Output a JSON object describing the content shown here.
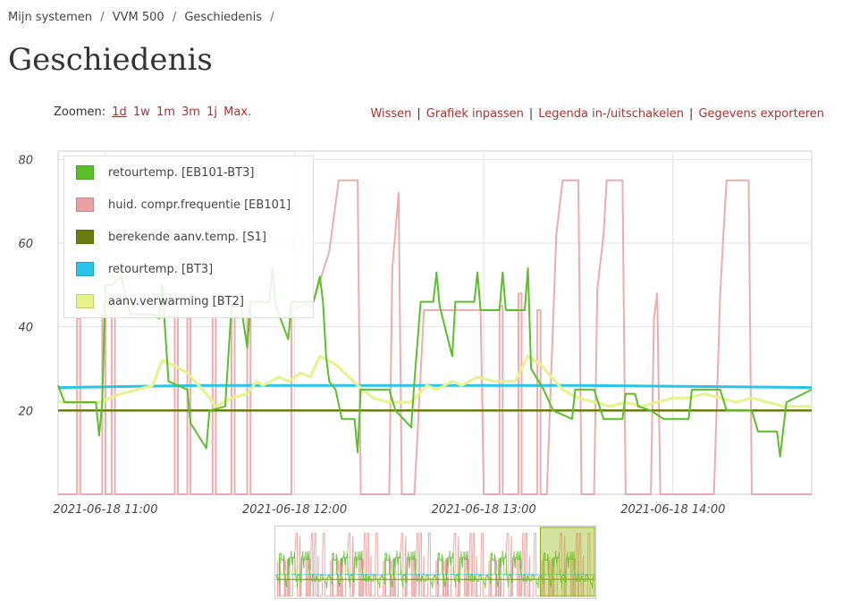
{
  "breadcrumb": {
    "items": [
      {
        "label": "Mijn systemen"
      },
      {
        "label": "VVM 500"
      },
      {
        "label": "Geschiedenis"
      }
    ],
    "separator": "/"
  },
  "page": {
    "title": "Geschiedenis"
  },
  "zoom": {
    "label": "Zoomen:",
    "options": [
      "1d",
      "1w",
      "1m",
      "3m",
      "1j",
      "Max."
    ],
    "active": "1d"
  },
  "actions": {
    "clear": "Wissen",
    "fit": "Grafiek inpassen",
    "legend_toggle": "Legenda in-/uitschakelen",
    "export": "Gegevens exporteren",
    "separator": "|"
  },
  "colors": {
    "link": "#aa3333",
    "series_green": "#5cbf2a",
    "series_pink": "#e8a0a0",
    "series_olive": "#6b7c10",
    "series_cyan": "#29c4e8",
    "series_yellow": "#e6f28a"
  },
  "chart_data": {
    "type": "line",
    "x_axis": {
      "ticks": [
        "2021-06-18 11:00",
        "2021-06-18 12:00",
        "2021-06-18 13:00",
        "2021-06-18 14:00"
      ],
      "range": [
        "2021-06-18 10:45",
        "2021-06-18 14:44"
      ]
    },
    "y_axis": {
      "ticks": [
        20,
        40,
        60,
        80
      ],
      "ylim": [
        0,
        82
      ]
    },
    "grid": true,
    "legend_position": "top-left",
    "series": [
      {
        "name": "retourtemp. [EB101-BT3]",
        "color": "#5cbf2a",
        "points": [
          [
            "2021-06-18 10:45",
            26
          ],
          [
            "2021-06-18 10:47",
            22
          ],
          [
            "2021-06-18 10:57",
            22
          ],
          [
            "2021-06-18 10:58",
            14
          ],
          [
            "2021-06-18 10:59",
            22
          ],
          [
            "2021-06-18 11:00",
            50
          ],
          [
            "2021-06-18 11:02",
            50
          ],
          [
            "2021-06-18 11:05",
            52
          ],
          [
            "2021-06-18 11:08",
            43
          ],
          [
            "2021-06-18 11:15",
            43
          ],
          [
            "2021-06-18 11:17",
            42
          ],
          [
            "2021-06-18 11:18",
            50
          ],
          [
            "2021-06-18 11:20",
            27
          ],
          [
            "2021-06-18 11:26",
            25
          ],
          [
            "2021-06-18 11:27",
            17
          ],
          [
            "2021-06-18 11:32",
            11
          ],
          [
            "2021-06-18 11:33",
            20
          ],
          [
            "2021-06-18 11:38",
            21
          ],
          [
            "2021-06-18 11:40",
            45
          ],
          [
            "2021-06-18 11:43",
            45
          ],
          [
            "2021-06-18 11:45",
            35
          ],
          [
            "2021-06-18 11:46",
            46
          ],
          [
            "2021-06-18 11:52",
            46
          ],
          [
            "2021-06-18 11:53",
            54
          ],
          [
            "2021-06-18 11:54",
            45
          ],
          [
            "2021-06-18 11:58",
            37
          ],
          [
            "2021-06-18 11:59",
            46
          ],
          [
            "2021-06-18 12:06",
            46
          ],
          [
            "2021-06-18 12:08",
            52
          ],
          [
            "2021-06-18 12:09",
            46
          ],
          [
            "2021-06-18 12:10",
            33
          ],
          [
            "2021-06-18 12:11",
            27
          ],
          [
            "2021-06-18 12:13",
            25
          ],
          [
            "2021-06-18 12:15",
            18
          ],
          [
            "2021-06-18 12:19",
            18
          ],
          [
            "2021-06-18 12:20",
            10
          ],
          [
            "2021-06-18 12:21",
            25
          ],
          [
            "2021-06-18 12:30",
            25
          ],
          [
            "2021-06-18 12:32",
            20
          ],
          [
            "2021-06-18 12:37",
            16
          ],
          [
            "2021-06-18 12:38",
            27
          ],
          [
            "2021-06-18 12:40",
            46
          ],
          [
            "2021-06-18 12:44",
            46
          ],
          [
            "2021-06-18 12:45",
            53
          ],
          [
            "2021-06-18 12:46",
            45
          ],
          [
            "2021-06-18 12:50",
            33
          ],
          [
            "2021-06-18 12:51",
            46
          ],
          [
            "2021-06-18 12:57",
            46
          ],
          [
            "2021-06-18 12:58",
            53
          ],
          [
            "2021-06-18 12:59",
            44
          ],
          [
            "2021-06-18 13:05",
            44
          ],
          [
            "2021-06-18 13:06",
            53
          ],
          [
            "2021-06-18 13:07",
            44
          ],
          [
            "2021-06-18 13:13",
            44
          ],
          [
            "2021-06-18 13:14",
            54
          ],
          [
            "2021-06-18 13:15",
            30
          ],
          [
            "2021-06-18 13:19",
            25
          ],
          [
            "2021-06-18 13:22",
            20
          ],
          [
            "2021-06-18 13:28",
            18
          ],
          [
            "2021-06-18 13:29",
            25
          ],
          [
            "2021-06-18 13:35",
            25
          ],
          [
            "2021-06-18 13:38",
            18
          ],
          [
            "2021-06-18 13:44",
            18
          ],
          [
            "2021-06-18 13:45",
            24
          ],
          [
            "2021-06-18 13:48",
            24
          ],
          [
            "2021-06-18 13:49",
            21
          ],
          [
            "2021-06-18 13:53",
            20
          ],
          [
            "2021-06-18 13:57",
            18
          ],
          [
            "2021-06-18 14:05",
            18
          ],
          [
            "2021-06-18 14:06",
            25
          ],
          [
            "2021-06-18 14:15",
            25
          ],
          [
            "2021-06-18 14:17",
            20
          ],
          [
            "2021-06-18 14:25",
            20
          ],
          [
            "2021-06-18 14:27",
            15
          ],
          [
            "2021-06-18 14:33",
            15
          ],
          [
            "2021-06-18 14:34",
            9
          ],
          [
            "2021-06-18 14:36",
            22
          ],
          [
            "2021-06-18 14:44",
            25
          ]
        ]
      },
      {
        "name": "huid. compr.frequentie [EB101]",
        "color": "#e8a0a0",
        "points": [
          [
            "2021-06-18 10:45",
            0
          ],
          [
            "2021-06-18 10:51",
            0
          ],
          [
            "2021-06-18 10:51",
            42
          ],
          [
            "2021-06-18 10:52",
            42
          ],
          [
            "2021-06-18 10:52",
            0
          ],
          [
            "2021-06-18 10:59",
            0
          ],
          [
            "2021-06-18 10:59",
            45
          ],
          [
            "2021-06-18 11:00",
            45
          ],
          [
            "2021-06-18 11:00",
            0
          ],
          [
            "2021-06-18 11:02",
            0
          ],
          [
            "2021-06-18 11:02",
            45
          ],
          [
            "2021-06-18 11:03",
            45
          ],
          [
            "2021-06-18 11:03",
            0
          ],
          [
            "2021-06-18 11:22",
            0
          ],
          [
            "2021-06-18 11:22",
            46
          ],
          [
            "2021-06-18 11:23",
            46
          ],
          [
            "2021-06-18 11:23",
            0
          ],
          [
            "2021-06-18 11:26",
            0
          ],
          [
            "2021-06-18 11:26",
            42
          ],
          [
            "2021-06-18 11:27",
            42
          ],
          [
            "2021-06-18 11:27",
            0
          ],
          [
            "2021-06-18 11:34",
            0
          ],
          [
            "2021-06-18 11:34",
            44
          ],
          [
            "2021-06-18 11:35",
            44
          ],
          [
            "2021-06-18 11:35",
            0
          ],
          [
            "2021-06-18 11:40",
            0
          ],
          [
            "2021-06-18 11:40",
            43
          ],
          [
            "2021-06-18 11:41",
            43
          ],
          [
            "2021-06-18 11:41",
            0
          ],
          [
            "2021-06-18 11:45",
            0
          ],
          [
            "2021-06-18 11:45",
            44
          ],
          [
            "2021-06-18 11:46",
            44
          ],
          [
            "2021-06-18 11:46",
            0
          ],
          [
            "2021-06-18 11:59",
            0
          ],
          [
            "2021-06-18 11:59",
            44
          ],
          [
            "2021-06-18 12:06",
            46
          ],
          [
            "2021-06-18 12:11",
            58
          ],
          [
            "2021-06-18 12:14",
            75
          ],
          [
            "2021-06-18 12:20",
            75
          ],
          [
            "2021-06-18 12:21",
            0
          ],
          [
            "2021-06-18 12:30",
            0
          ],
          [
            "2021-06-18 12:31",
            54
          ],
          [
            "2021-06-18 12:33",
            72
          ],
          [
            "2021-06-18 12:34",
            0
          ],
          [
            "2021-06-18 12:37",
            0
          ],
          [
            "2021-06-18 12:38",
            0
          ],
          [
            "2021-06-18 12:41",
            44
          ],
          [
            "2021-06-18 12:59",
            44
          ],
          [
            "2021-06-18 13:00",
            0
          ],
          [
            "2021-06-18 13:05",
            0
          ],
          [
            "2021-06-18 13:05",
            45
          ],
          [
            "2021-06-18 13:06",
            45
          ],
          [
            "2021-06-18 13:06",
            0
          ],
          [
            "2021-06-18 13:11",
            0
          ],
          [
            "2021-06-18 13:11",
            48
          ],
          [
            "2021-06-18 13:12",
            48
          ],
          [
            "2021-06-18 13:12",
            0
          ],
          [
            "2021-06-18 13:17",
            0
          ],
          [
            "2021-06-18 13:17",
            44
          ],
          [
            "2021-06-18 13:18",
            44
          ],
          [
            "2021-06-18 13:18",
            0
          ],
          [
            "2021-06-18 13:20",
            0
          ],
          [
            "2021-06-18 13:23",
            62
          ],
          [
            "2021-06-18 13:25",
            75
          ],
          [
            "2021-06-18 13:30",
            75
          ],
          [
            "2021-06-18 13:31",
            0
          ],
          [
            "2021-06-18 13:35",
            0
          ],
          [
            "2021-06-18 13:36",
            49
          ],
          [
            "2021-06-18 13:38",
            62
          ],
          [
            "2021-06-18 13:39",
            75
          ],
          [
            "2021-06-18 13:44",
            75
          ],
          [
            "2021-06-18 13:45",
            0
          ],
          [
            "2021-06-18 13:53",
            0
          ],
          [
            "2021-06-18 13:54",
            42
          ],
          [
            "2021-06-18 13:55",
            48
          ],
          [
            "2021-06-18 13:56",
            0
          ],
          [
            "2021-06-18 14:13",
            0
          ],
          [
            "2021-06-18 14:15",
            48
          ],
          [
            "2021-06-18 14:16",
            62
          ],
          [
            "2021-06-18 14:17",
            75
          ],
          [
            "2021-06-18 14:24",
            75
          ],
          [
            "2021-06-18 14:25",
            0
          ],
          [
            "2021-06-18 14:44",
            0
          ]
        ]
      },
      {
        "name": "berekende aanv.temp. [S1]",
        "color": "#6b7c10",
        "points": [
          [
            "2021-06-18 10:45",
            20
          ],
          [
            "2021-06-18 14:44",
            20
          ]
        ]
      },
      {
        "name": "retourtemp. [BT3]",
        "color": "#29c4e8",
        "points": [
          [
            "2021-06-18 10:45",
            25.5
          ],
          [
            "2021-06-18 11:30",
            26
          ],
          [
            "2021-06-18 12:30",
            26
          ],
          [
            "2021-06-18 13:30",
            26
          ],
          [
            "2021-06-18 14:44",
            25.5
          ]
        ]
      },
      {
        "name": "aanv.verwarming [BT2]",
        "color": "#e6f28a",
        "points": [
          [
            "2021-06-18 10:45",
            22
          ],
          [
            "2021-06-18 10:58",
            22
          ],
          [
            "2021-06-18 11:05",
            24
          ],
          [
            "2021-06-18 11:15",
            26
          ],
          [
            "2021-06-18 11:18",
            32
          ],
          [
            "2021-06-18 11:21",
            31
          ],
          [
            "2021-06-18 11:26",
            29
          ],
          [
            "2021-06-18 11:32",
            24
          ],
          [
            "2021-06-18 11:35",
            21
          ],
          [
            "2021-06-18 11:40",
            23
          ],
          [
            "2021-06-18 11:45",
            24
          ],
          [
            "2021-06-18 11:48",
            27
          ],
          [
            "2021-06-18 11:50",
            26
          ],
          [
            "2021-06-18 11:55",
            28
          ],
          [
            "2021-06-18 11:58",
            27
          ],
          [
            "2021-06-18 12:02",
            29
          ],
          [
            "2021-06-18 12:05",
            28
          ],
          [
            "2021-06-18 12:08",
            33
          ],
          [
            "2021-06-18 12:13",
            31
          ],
          [
            "2021-06-18 12:20",
            26
          ],
          [
            "2021-06-18 12:25",
            23
          ],
          [
            "2021-06-18 12:30",
            22
          ],
          [
            "2021-06-18 12:37",
            22
          ],
          [
            "2021-06-18 12:42",
            26
          ],
          [
            "2021-06-18 12:45",
            25
          ],
          [
            "2021-06-18 12:50",
            27
          ],
          [
            "2021-06-18 12:53",
            26
          ],
          [
            "2021-06-18 12:58",
            28
          ],
          [
            "2021-06-18 13:03",
            27
          ],
          [
            "2021-06-18 13:10",
            27
          ],
          [
            "2021-06-18 13:14",
            33
          ],
          [
            "2021-06-18 13:18",
            31
          ],
          [
            "2021-06-18 13:25",
            25
          ],
          [
            "2021-06-18 13:30",
            23
          ],
          [
            "2021-06-18 13:35",
            22
          ],
          [
            "2021-06-18 13:40",
            21
          ],
          [
            "2021-06-18 13:45",
            22
          ],
          [
            "2021-06-18 13:50",
            21
          ],
          [
            "2021-06-18 13:55",
            22
          ],
          [
            "2021-06-18 14:00",
            23
          ],
          [
            "2021-06-18 14:05",
            23
          ],
          [
            "2021-06-18 14:10",
            24
          ],
          [
            "2021-06-18 14:15",
            23
          ],
          [
            "2021-06-18 14:20",
            22
          ],
          [
            "2021-06-18 14:25",
            23
          ],
          [
            "2021-06-18 14:30",
            22
          ],
          [
            "2021-06-18 14:35",
            21
          ],
          [
            "2021-06-18 14:44",
            21
          ]
        ]
      }
    ]
  }
}
